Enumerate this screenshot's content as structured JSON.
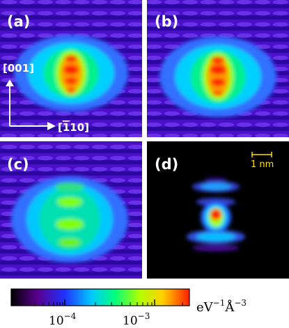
{
  "figure": {
    "panels": [
      {
        "id": "a",
        "label": "(a)"
      },
      {
        "id": "b",
        "label": "(b)"
      },
      {
        "id": "c",
        "label": "(c)"
      },
      {
        "id": "d",
        "label": "(d)"
      }
    ],
    "axes": {
      "vertical": "[001]",
      "horizontal_prefix": "[",
      "horizontal_bar_digit": "1",
      "horizontal_suffix": "10]"
    },
    "scale_bar": {
      "label": "1 nm",
      "color": "#ffe000"
    },
    "colorbar": {
      "scale": "log",
      "tick_labels": [
        {
          "base": "10",
          "exp": "−4"
        },
        {
          "base": "10",
          "exp": "−3"
        }
      ],
      "unit_main": "eV",
      "unit_exp1": "−1",
      "unit_angstrom": "Å",
      "unit_exp2": "−3",
      "colors": [
        "#000000",
        "#5a0090",
        "#2030ff",
        "#00c8ff",
        "#00ff80",
        "#b0ff00",
        "#ffd000",
        "#ff2000"
      ]
    }
  }
}
